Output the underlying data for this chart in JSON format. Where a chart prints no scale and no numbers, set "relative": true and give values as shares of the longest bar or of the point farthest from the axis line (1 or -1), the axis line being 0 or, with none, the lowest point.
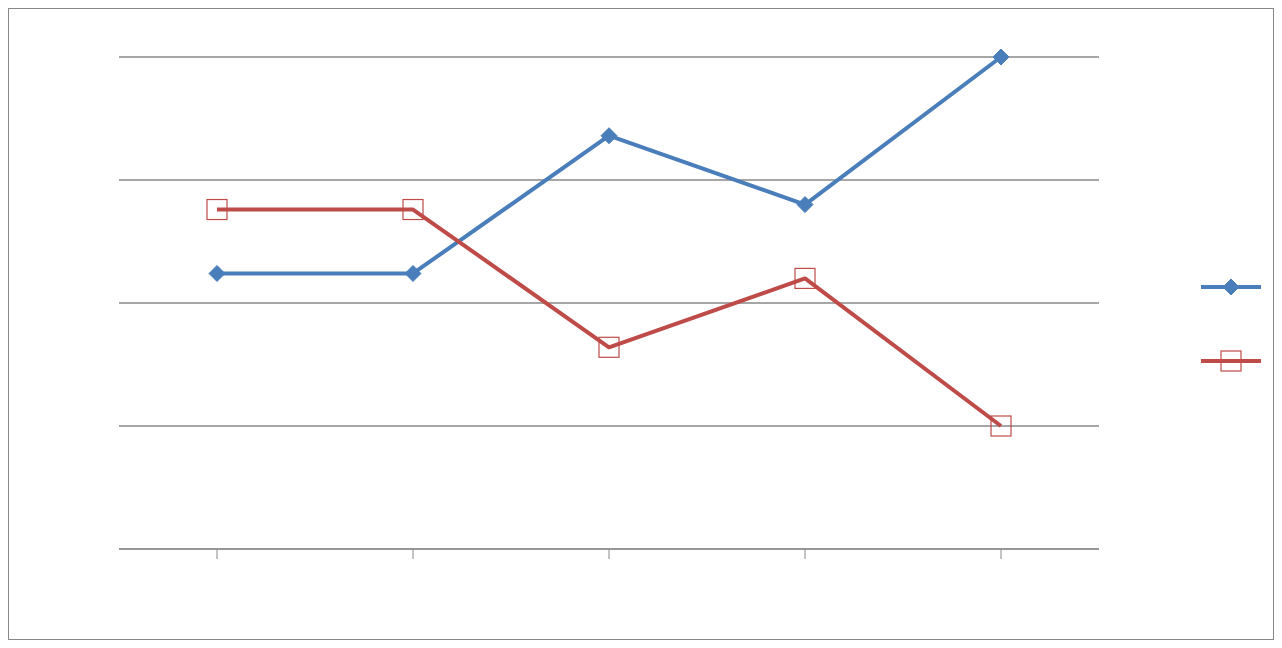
{
  "chart_data": {
    "type": "line",
    "relative": true,
    "categories": [
      null,
      null,
      null,
      null,
      null
    ],
    "series": [
      {
        "color": "#4a7ebb",
        "marker": "diamond",
        "values": [
          0.56,
          0.56,
          0.84,
          0.7,
          1
        ]
      },
      {
        "color": "#be4b48",
        "marker": "square",
        "values": [
          0.69,
          0.69,
          0.41,
          0.55,
          0.25
        ]
      }
    ],
    "grid": "y",
    "line_style": "solid"
  }
}
